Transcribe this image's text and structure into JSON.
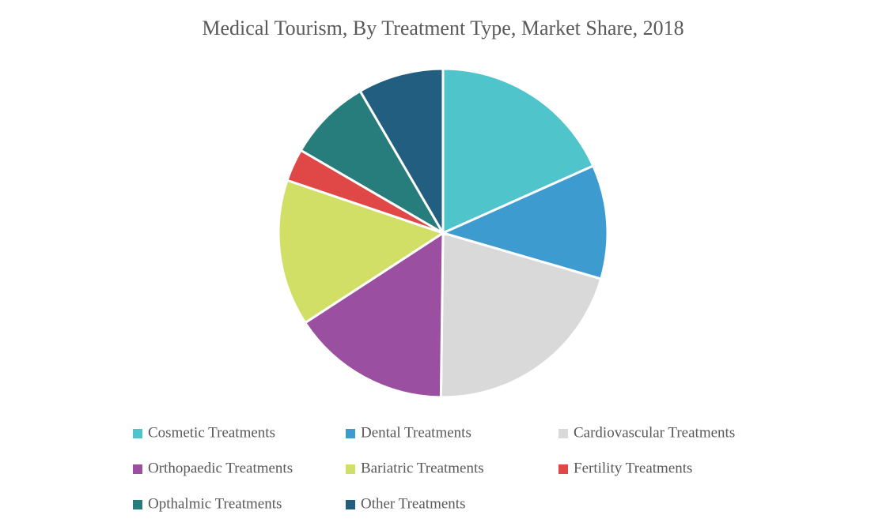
{
  "chart_data": {
    "type": "pie",
    "title": "Medical Tourism, By Treatment Type, Market Share, 2018",
    "categories": [
      "Cosmetic Treatments",
      "Dental Treatments",
      "Cardiovascular Treatments",
      "Orthopaedic Treatments",
      "Bariatric Treatments",
      "Fertility Treatments",
      "Opthalmic Treatments",
      "Other Treatments"
    ],
    "values": [
      18.3,
      11.2,
      20.7,
      15.6,
      14.4,
      3.2,
      8.2,
      8.4
    ],
    "colors": [
      "#4fc4cb",
      "#3d9bd0",
      "#d9d9d9",
      "#9b4fa0",
      "#d1df66",
      "#e04848",
      "#277c7c",
      "#215e80"
    ],
    "legend": "bottom"
  }
}
